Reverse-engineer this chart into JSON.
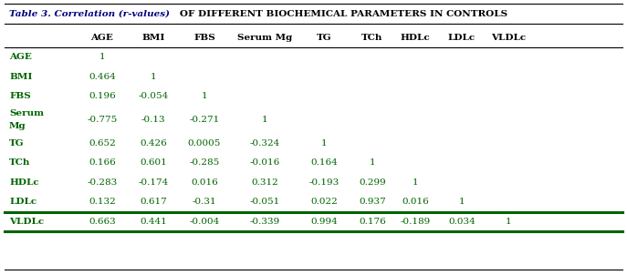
{
  "title_italic": "Table 3. Correlation (r-values) ",
  "title_normal": "OF DIFFERENT BIOCHEMICAL PARAMETERS IN CONTROLS",
  "col_headers": [
    "AGE",
    "BMI",
    "FBS",
    "Serum Mg",
    "TG",
    "TCh",
    "HDLc",
    "LDLc",
    "VLDLc"
  ],
  "rows": [
    {
      "label": "AGE",
      "label2": "",
      "values": [
        "1",
        "",
        "",
        "",
        "",
        "",
        "",
        "",
        ""
      ]
    },
    {
      "label": "BMI",
      "label2": "",
      "values": [
        "0.464",
        "1",
        "",
        "",
        "",
        "",
        "",
        "",
        ""
      ]
    },
    {
      "label": "FBS",
      "label2": "",
      "values": [
        "0.196",
        "-0.054",
        "1",
        "",
        "",
        "",
        "",
        "",
        ""
      ]
    },
    {
      "label": "Serum",
      "label2": "Mg",
      "values": [
        "-0.775",
        "-0.13",
        "-0.271",
        "1",
        "",
        "",
        "",
        "",
        ""
      ]
    },
    {
      "label": "TG",
      "label2": "",
      "values": [
        "0.652",
        "0.426",
        "0.0005",
        "-0.324",
        "1",
        "",
        "",
        "",
        ""
      ]
    },
    {
      "label": "TCh",
      "label2": "",
      "values": [
        "0.166",
        "0.601",
        "-0.285",
        "-0.016",
        "0.164",
        "1",
        "",
        "",
        ""
      ]
    },
    {
      "label": "HDLc",
      "label2": "",
      "values": [
        "-0.283",
        "-0.174",
        "0.016",
        "0.312",
        "-0.193",
        "0.299",
        "1",
        "",
        ""
      ]
    },
    {
      "label": "LDLc",
      "label2": "",
      "values": [
        "0.132",
        "0.617",
        "-0.31",
        "-0.051",
        "0.022",
        "0.937",
        "0.016",
        "1",
        ""
      ]
    },
    {
      "label": "VLDLc",
      "label2": "",
      "values": [
        "0.663",
        "0.441",
        "-0.004",
        "-0.339",
        "0.994",
        "0.176",
        "-0.189",
        "0.034",
        "1"
      ]
    }
  ],
  "text_color": "#006400",
  "title_italic_color": "#000080",
  "title_normal_color": "#000000",
  "header_color": "#000000",
  "line_color": "#000000",
  "thick_line_color": "#006400",
  "background_color": "#ffffff",
  "figsize": [
    6.87,
    3.02
  ],
  "dpi": 100
}
